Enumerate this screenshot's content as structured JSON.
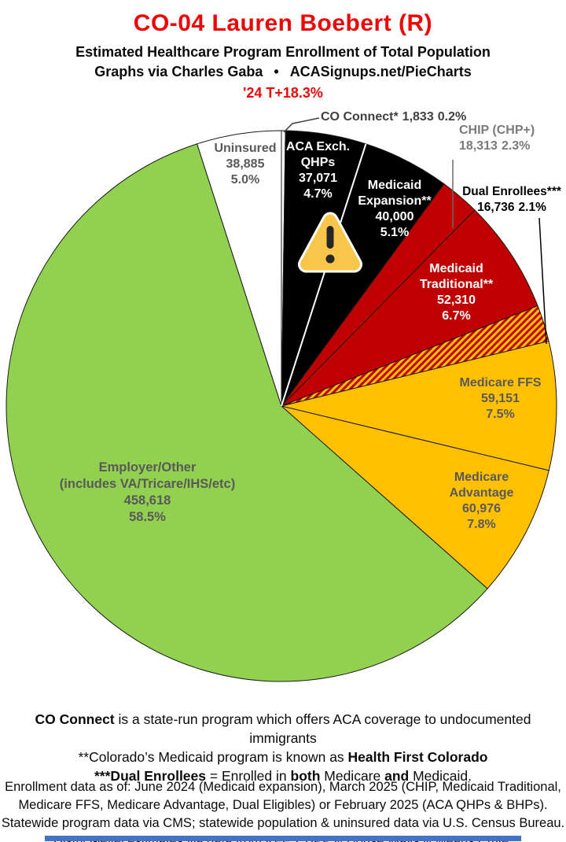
{
  "header": {
    "title": "CO-04 Lauren Boebert (R)",
    "subtitle": "Estimated Healthcare Program Enrollment of Total Population",
    "byline_left": "Graphs via Charles Gaba",
    "byline_bullet": "•",
    "byline_right": "ACASignups.net/PieCharts",
    "trend": "'24 T+18.3%"
  },
  "chart_data": {
    "type": "pie",
    "title": "Estimated Healthcare Program Enrollment of Total Population",
    "total": 783893,
    "start_angle_deg": 0,
    "direction": "clockwise-from-top",
    "legend_position": "labels-on-and-around-slices",
    "slices": [
      {
        "id": "co-connect",
        "label_lines": [
          "CO Connect*"
        ],
        "value": 1833,
        "value_text": "1,833",
        "pct": "0.2%",
        "color": "#ffffff"
      },
      {
        "id": "aca-exchange-qhps",
        "label_lines": [
          "ACA Exch.",
          "QHPs"
        ],
        "value": 37071,
        "value_text": "37,071",
        "pct": "4.7%",
        "color": "#000000"
      },
      {
        "id": "medicaid-expansion",
        "label_lines": [
          "Medicaid",
          "Expansion**"
        ],
        "value": 40000,
        "value_text": "40,000",
        "pct": "5.1%",
        "color": "#000000"
      },
      {
        "id": "chip",
        "label_lines": [
          "CHIP (CHP+)"
        ],
        "value": 18313,
        "value_text": "18,313",
        "pct": "2.3%",
        "color": "#c00000"
      },
      {
        "id": "medicaid-traditional",
        "label_lines": [
          "Medicaid",
          "Traditional**"
        ],
        "value": 52310,
        "value_text": "52,310",
        "pct": "6.7%",
        "color": "#c00000"
      },
      {
        "id": "dual-enrollees",
        "label_lines": [
          "Dual Enrollees***"
        ],
        "value": 16736,
        "value_text": "16,736",
        "pct": "2.1%",
        "color": "pattern:red-gold-diagonal-stripes"
      },
      {
        "id": "medicare-ffs",
        "label_lines": [
          "Medicare FFS"
        ],
        "value": 59151,
        "value_text": "59,151",
        "pct": "7.5%",
        "color": "#ffc000"
      },
      {
        "id": "medicare-advantage",
        "label_lines": [
          "Medicare",
          "Advantage"
        ],
        "value": 60976,
        "value_text": "60,976",
        "pct": "7.8%",
        "color": "#ffc000"
      },
      {
        "id": "employer-other",
        "label_lines": [
          "Employer/Other",
          "(includes VA/Tricare/IHS/etc)"
        ],
        "value": 458618,
        "value_text": "458,618",
        "pct": "58.5%",
        "color": "#92d050"
      },
      {
        "id": "uninsured",
        "label_lines": [
          "Uninsured"
        ],
        "value": 38885,
        "value_text": "38,885",
        "pct": "5.0%",
        "color": "#ffffff"
      }
    ]
  },
  "icons": {
    "warning_icon": {
      "shape": "rounded-triangle-exclamation",
      "fill": "#f7c64a",
      "outline": "#ffffff",
      "glyph_color": "#262626"
    }
  },
  "footnotes": {
    "lines": [
      [
        {
          "t": "CO Connect",
          "b": true
        },
        {
          "t": " is a state-run program which offers ACA coverage to undocumented immigrants",
          "b": false
        }
      ],
      [
        {
          "t": "**Colorado’s Medicaid program is known as ",
          "b": false
        },
        {
          "t": "Health First Colorado",
          "b": true
        }
      ],
      [
        {
          "t": "***Dual Enrollees",
          "b": true
        },
        {
          "t": " = Enrolled in ",
          "b": false
        },
        {
          "t": "both",
          "b": true
        },
        {
          "t": " Medicare ",
          "b": false
        },
        {
          "t": "and",
          "b": true
        },
        {
          "t": " Medicaid.",
          "b": false
        }
      ]
    ]
  },
  "source_notes": {
    "lines": [
      "Enrollment data as of: June 2024 (Medicaid expansion), March 2025 (CHIP, Medicaid Traditional,",
      "Medicare FFS, Medicare Advantage, Dual Eligibles) or February 2025 (ACA QHPs & BHPs).",
      "Statewide program data via CMS; statewide population & uninsured data via U.S. Census Bureau.",
      "District-level estimates via data from KFF, CBPP & House Ways & Means Cmte."
    ]
  },
  "colors": {
    "title_red": "#ee0505",
    "pie_red": "#c00000",
    "pie_gold": "#ffc000",
    "pie_green": "#92d050",
    "pie_black": "#000000",
    "stripe_red": "#c00000",
    "stripe_gold": "#ffc000",
    "bottom_bar_blue": "#4472c4",
    "label_gray": "#595959"
  }
}
